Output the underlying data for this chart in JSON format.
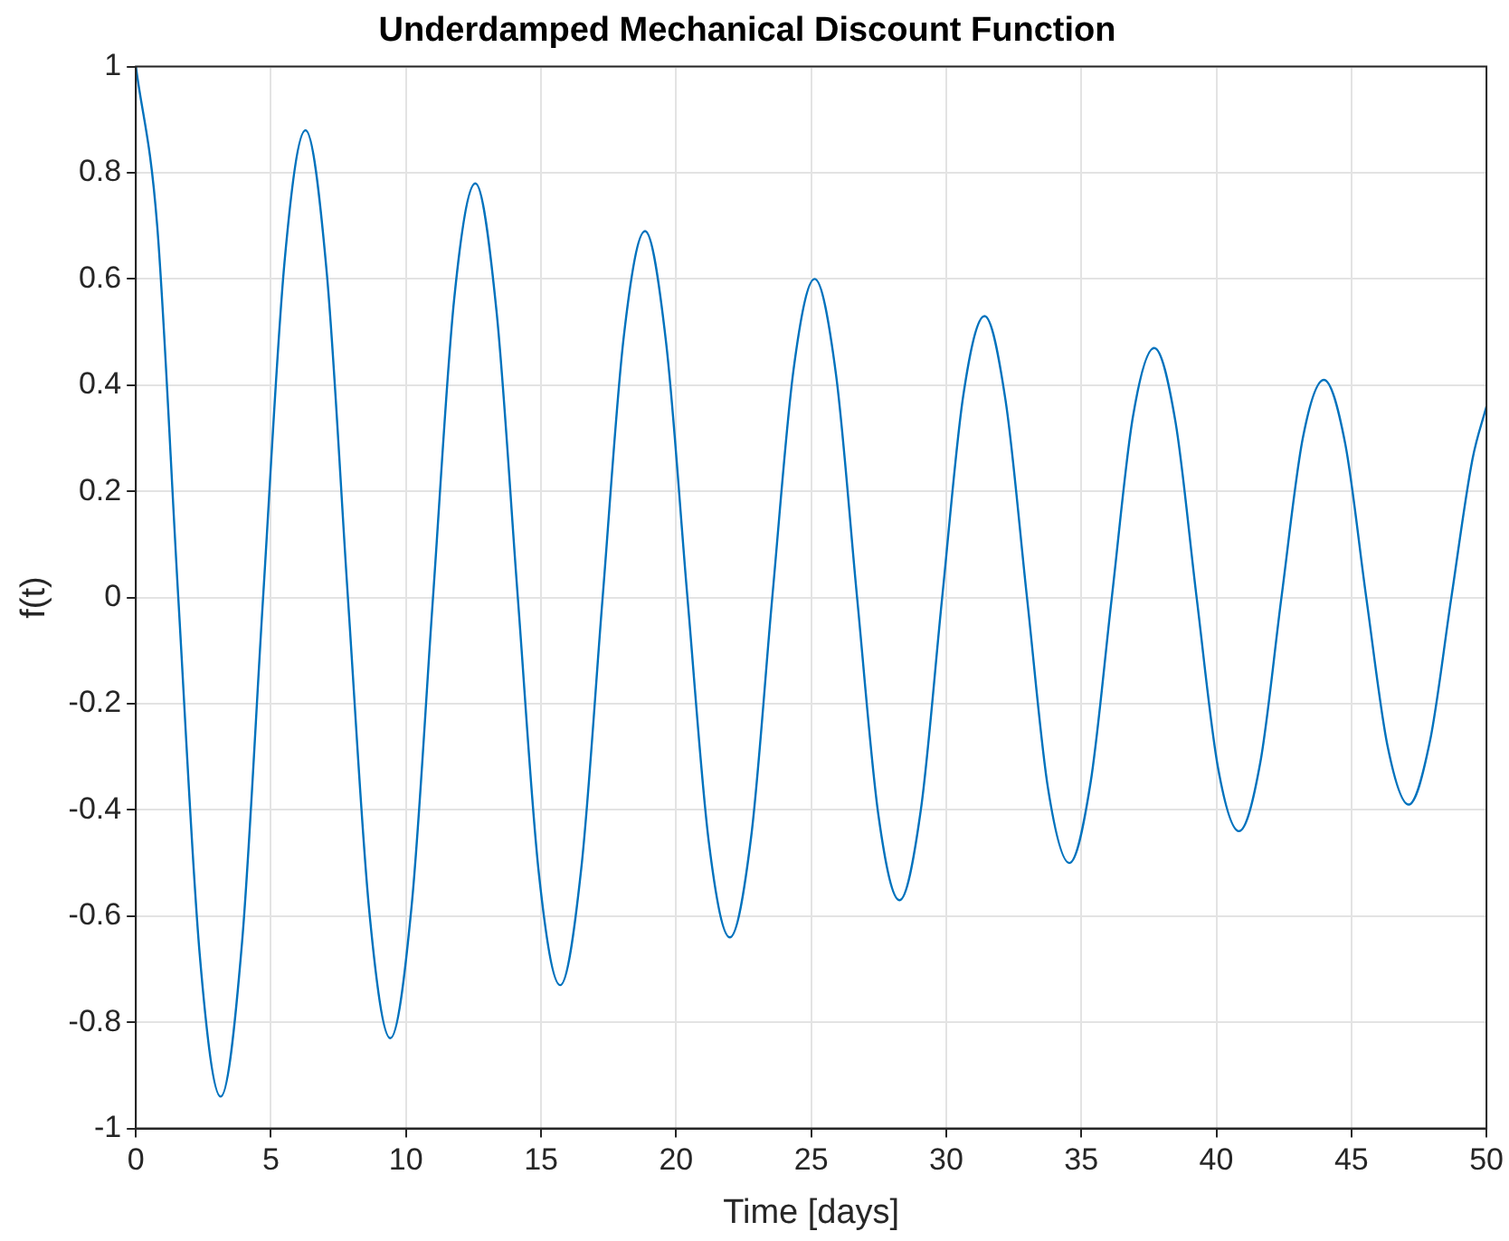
{
  "chart_data": {
    "type": "line",
    "title": "Underdamped Mechanical Discount Function",
    "xlabel": "Time [days]",
    "ylabel": "f(t)",
    "series": [
      {
        "color": "#0072bd",
        "x": [
          0,
          0.79,
          1.57,
          2.36,
          3.14,
          3.93,
          4.71,
          5.5,
          6.28,
          7.07,
          7.85,
          8.64,
          9.42,
          10.21,
          11,
          11.78,
          12.57,
          13.35,
          14.14,
          14.92,
          15.71,
          16.49,
          17.28,
          18.06,
          18.85,
          19.63,
          20.42,
          21.21,
          21.99,
          22.78,
          23.56,
          24.35,
          25.13,
          25.92,
          26.7,
          27.49,
          28.27,
          29.06,
          29.85,
          30.63,
          31.42,
          32.2,
          32.99,
          33.77,
          34.56,
          35.34,
          36.13,
          36.91,
          37.7,
          38.49,
          39.27,
          40.06,
          40.84,
          41.63,
          42.41,
          43.2,
          43.98,
          44.77,
          45.55,
          46.34,
          47.12,
          47.91,
          48.7,
          49.48,
          50
        ],
        "values": [
          1,
          0.7,
          0,
          -0.67,
          -0.94,
          -0.65,
          0,
          0.63,
          0.88,
          0.61,
          0,
          -0.59,
          -0.83,
          -0.58,
          0,
          0.56,
          0.78,
          0.54,
          0,
          -0.52,
          -0.73,
          -0.51,
          0,
          0.49,
          0.69,
          0.48,
          0,
          -0.46,
          -0.64,
          -0.45,
          0,
          0.43,
          0.6,
          0.42,
          0,
          -0.41,
          -0.57,
          -0.4,
          0,
          0.38,
          0.53,
          0.37,
          0,
          -0.36,
          -0.5,
          -0.35,
          0,
          0.34,
          0.47,
          0.33,
          0,
          -0.32,
          -0.44,
          -0.31,
          0,
          0.3,
          0.41,
          0.29,
          0,
          -0.28,
          -0.39,
          -0.27,
          0,
          0.26,
          0.36
        ]
      }
    ],
    "xlim": [
      0,
      50
    ],
    "xticks": [
      0,
      5,
      10,
      15,
      20,
      25,
      30,
      35,
      40,
      45,
      50
    ],
    "ylim": [
      -1,
      1
    ],
    "yticks": [
      -1,
      -0.8,
      -0.6,
      -0.4,
      -0.2,
      0,
      0.2,
      0.4,
      0.6,
      0.8,
      1
    ],
    "grid": true,
    "marker": "none",
    "line_style": "solid",
    "legend": false
  }
}
